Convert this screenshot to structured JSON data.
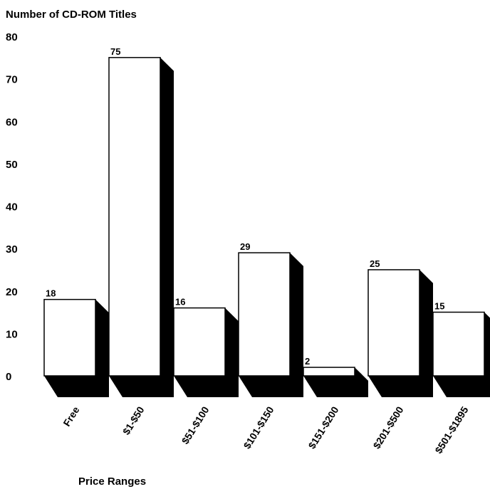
{
  "chart_data": {
    "type": "bar",
    "ylabel": "Number of CD-ROM Titles",
    "xlabel": "Price Ranges",
    "categories": [
      "Free",
      "$1-$50",
      "$51-$100",
      "$101-$150",
      "$151-$200",
      "$201-$500",
      "$501-$1895"
    ],
    "values": [
      18,
      75,
      16,
      29,
      2,
      25,
      15
    ],
    "yticks": [
      "0",
      "10",
      "20",
      "30",
      "40",
      "50",
      "60",
      "70",
      "80"
    ],
    "ylim": [
      0,
      80
    ],
    "style": "3d-bar",
    "grid": false,
    "legend": "none"
  }
}
